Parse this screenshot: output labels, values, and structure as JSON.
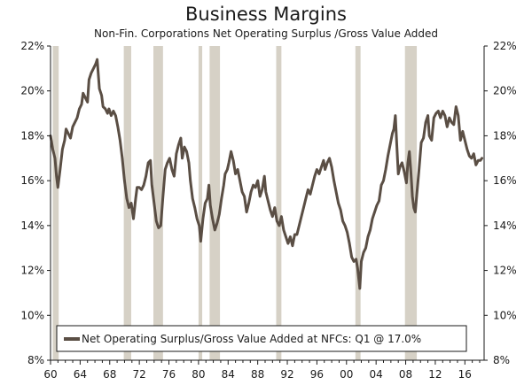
{
  "chart_data": {
    "type": "line",
    "title": "Business Margins",
    "subtitle": "Non-Fin. Corporations Net Operating Surplus /Gross Value Added",
    "xlabel": "",
    "ylabel": "",
    "xlim": [
      1960,
      2018.6
    ],
    "ylim": [
      8,
      22
    ],
    "x_ticks": [
      "60",
      "64",
      "68",
      "72",
      "76",
      "80",
      "84",
      "88",
      "92",
      "96",
      "00",
      "04",
      "08",
      "12",
      "16"
    ],
    "y_ticks": [
      "8%",
      "10%",
      "12%",
      "14%",
      "16%",
      "18%",
      "20%",
      "22%"
    ],
    "recessions": [
      [
        1960.3,
        1961.1
      ],
      [
        1969.9,
        1970.9
      ],
      [
        1973.9,
        1975.2
      ],
      [
        1980.0,
        1980.5
      ],
      [
        1981.5,
        1982.9
      ],
      [
        1990.5,
        1991.2
      ],
      [
        2001.2,
        2001.9
      ],
      [
        2007.9,
        2009.5
      ]
    ],
    "series": [
      {
        "name": "Net Operating Surplus/Gross Value Added at NFCs: Q1 @ 17.0%",
        "color": "#5a4e44",
        "points": [
          [
            1960.0,
            18.0
          ],
          [
            1960.3,
            17.4
          ],
          [
            1960.6,
            17.0
          ],
          [
            1960.8,
            16.2
          ],
          [
            1961.0,
            15.7
          ],
          [
            1961.3,
            16.5
          ],
          [
            1961.6,
            17.4
          ],
          [
            1961.9,
            17.8
          ],
          [
            1962.1,
            18.3
          ],
          [
            1962.4,
            18.1
          ],
          [
            1962.7,
            17.9
          ],
          [
            1963.0,
            18.4
          ],
          [
            1963.3,
            18.6
          ],
          [
            1963.6,
            18.8
          ],
          [
            1963.9,
            19.2
          ],
          [
            1964.2,
            19.4
          ],
          [
            1964.4,
            19.9
          ],
          [
            1964.7,
            19.7
          ],
          [
            1965.0,
            19.5
          ],
          [
            1965.2,
            20.5
          ],
          [
            1965.5,
            20.8
          ],
          [
            1965.8,
            21.0
          ],
          [
            1966.1,
            21.2
          ],
          [
            1966.3,
            21.4
          ],
          [
            1966.6,
            20.1
          ],
          [
            1966.9,
            19.8
          ],
          [
            1967.1,
            19.3
          ],
          [
            1967.4,
            19.2
          ],
          [
            1967.7,
            19.0
          ],
          [
            1967.9,
            19.2
          ],
          [
            1968.2,
            18.9
          ],
          [
            1968.5,
            19.1
          ],
          [
            1968.8,
            18.9
          ],
          [
            1969.1,
            18.4
          ],
          [
            1969.4,
            17.8
          ],
          [
            1969.7,
            17.0
          ],
          [
            1970.0,
            16.0
          ],
          [
            1970.3,
            15.2
          ],
          [
            1970.6,
            14.8
          ],
          [
            1970.9,
            15.0
          ],
          [
            1971.2,
            14.3
          ],
          [
            1971.5,
            15.2
          ],
          [
            1971.7,
            15.7
          ],
          [
            1972.0,
            15.7
          ],
          [
            1972.3,
            15.6
          ],
          [
            1972.6,
            15.8
          ],
          [
            1972.9,
            16.2
          ],
          [
            1973.2,
            16.8
          ],
          [
            1973.5,
            16.9
          ],
          [
            1973.7,
            15.8
          ],
          [
            1974.0,
            15.0
          ],
          [
            1974.3,
            14.2
          ],
          [
            1974.6,
            13.9
          ],
          [
            1974.9,
            14.0
          ],
          [
            1975.2,
            15.3
          ],
          [
            1975.5,
            16.5
          ],
          [
            1975.8,
            16.8
          ],
          [
            1976.1,
            17.0
          ],
          [
            1976.4,
            16.5
          ],
          [
            1976.7,
            16.2
          ],
          [
            1977.0,
            17.2
          ],
          [
            1977.3,
            17.6
          ],
          [
            1977.6,
            17.9
          ],
          [
            1977.8,
            17.0
          ],
          [
            1978.1,
            17.5
          ],
          [
            1978.4,
            17.3
          ],
          [
            1978.7,
            16.8
          ],
          [
            1978.9,
            16.0
          ],
          [
            1979.2,
            15.2
          ],
          [
            1979.5,
            14.8
          ],
          [
            1979.8,
            14.3
          ],
          [
            1980.1,
            14.0
          ],
          [
            1980.3,
            13.3
          ],
          [
            1980.6,
            14.3
          ],
          [
            1980.9,
            15.0
          ],
          [
            1981.2,
            15.2
          ],
          [
            1981.4,
            15.8
          ],
          [
            1981.6,
            14.9
          ],
          [
            1981.9,
            14.3
          ],
          [
            1982.2,
            13.8
          ],
          [
            1982.5,
            14.1
          ],
          [
            1982.8,
            14.5
          ],
          [
            1983.1,
            15.2
          ],
          [
            1983.4,
            15.8
          ],
          [
            1983.6,
            16.3
          ],
          [
            1983.9,
            16.5
          ],
          [
            1984.1,
            16.8
          ],
          [
            1984.4,
            17.3
          ],
          [
            1984.7,
            16.9
          ],
          [
            1985.0,
            16.3
          ],
          [
            1985.3,
            16.5
          ],
          [
            1985.6,
            16.0
          ],
          [
            1985.9,
            15.5
          ],
          [
            1986.2,
            15.3
          ],
          [
            1986.5,
            14.6
          ],
          [
            1986.8,
            15.0
          ],
          [
            1987.1,
            15.5
          ],
          [
            1987.4,
            15.8
          ],
          [
            1987.7,
            15.7
          ],
          [
            1988.0,
            16.0
          ],
          [
            1988.3,
            15.3
          ],
          [
            1988.6,
            15.6
          ],
          [
            1988.9,
            16.2
          ],
          [
            1989.1,
            15.5
          ],
          [
            1989.4,
            15.1
          ],
          [
            1989.7,
            14.7
          ],
          [
            1990.0,
            14.4
          ],
          [
            1990.3,
            14.8
          ],
          [
            1990.6,
            14.2
          ],
          [
            1990.9,
            14.0
          ],
          [
            1991.2,
            14.4
          ],
          [
            1991.5,
            13.8
          ],
          [
            1991.8,
            13.5
          ],
          [
            1992.1,
            13.2
          ],
          [
            1992.4,
            13.5
          ],
          [
            1992.7,
            13.1
          ],
          [
            1993.0,
            13.6
          ],
          [
            1993.3,
            13.6
          ],
          [
            1993.6,
            14.0
          ],
          [
            1993.9,
            14.4
          ],
          [
            1994.2,
            14.8
          ],
          [
            1994.5,
            15.2
          ],
          [
            1994.8,
            15.6
          ],
          [
            1995.1,
            15.4
          ],
          [
            1995.4,
            15.8
          ],
          [
            1995.7,
            16.2
          ],
          [
            1996.0,
            16.5
          ],
          [
            1996.3,
            16.3
          ],
          [
            1996.6,
            16.6
          ],
          [
            1996.9,
            16.9
          ],
          [
            1997.1,
            16.5
          ],
          [
            1997.4,
            16.8
          ],
          [
            1997.7,
            17.0
          ],
          [
            1998.0,
            16.6
          ],
          [
            1998.3,
            16.0
          ],
          [
            1998.6,
            15.5
          ],
          [
            1998.9,
            15.0
          ],
          [
            1999.2,
            14.7
          ],
          [
            1999.5,
            14.2
          ],
          [
            1999.8,
            14.0
          ],
          [
            2000.1,
            13.7
          ],
          [
            2000.4,
            13.2
          ],
          [
            2000.7,
            12.6
          ],
          [
            2001.0,
            12.4
          ],
          [
            2001.3,
            12.5
          ],
          [
            2001.5,
            12.1
          ],
          [
            2001.8,
            11.2
          ],
          [
            2002.0,
            12.4
          ],
          [
            2002.3,
            12.8
          ],
          [
            2002.6,
            13.0
          ],
          [
            2002.9,
            13.5
          ],
          [
            2003.2,
            13.8
          ],
          [
            2003.5,
            14.3
          ],
          [
            2003.8,
            14.6
          ],
          [
            2004.1,
            14.9
          ],
          [
            2004.4,
            15.1
          ],
          [
            2004.7,
            15.8
          ],
          [
            2005.0,
            16.0
          ],
          [
            2005.3,
            16.5
          ],
          [
            2005.6,
            17.1
          ],
          [
            2005.9,
            17.6
          ],
          [
            2006.2,
            18.1
          ],
          [
            2006.4,
            18.3
          ],
          [
            2006.6,
            18.9
          ],
          [
            2006.8,
            17.6
          ],
          [
            2007.0,
            16.3
          ],
          [
            2007.2,
            16.6
          ],
          [
            2007.5,
            16.8
          ],
          [
            2007.8,
            16.4
          ],
          [
            2008.1,
            15.9
          ],
          [
            2008.3,
            16.8
          ],
          [
            2008.5,
            17.3
          ],
          [
            2008.7,
            16.4
          ],
          [
            2008.9,
            15.3
          ],
          [
            2009.1,
            14.8
          ],
          [
            2009.3,
            14.6
          ],
          [
            2009.5,
            15.4
          ],
          [
            2009.8,
            16.5
          ],
          [
            2010.1,
            17.7
          ],
          [
            2010.4,
            17.9
          ],
          [
            2010.7,
            18.6
          ],
          [
            2011.0,
            18.9
          ],
          [
            2011.2,
            18.0
          ],
          [
            2011.5,
            17.8
          ],
          [
            2011.8,
            18.8
          ],
          [
            2012.1,
            19.0
          ],
          [
            2012.4,
            19.1
          ],
          [
            2012.7,
            18.8
          ],
          [
            2013.0,
            19.1
          ],
          [
            2013.3,
            18.9
          ],
          [
            2013.6,
            18.4
          ],
          [
            2013.9,
            18.8
          ],
          [
            2014.2,
            18.6
          ],
          [
            2014.5,
            18.5
          ],
          [
            2014.8,
            19.3
          ],
          [
            2015.1,
            18.9
          ],
          [
            2015.4,
            17.8
          ],
          [
            2015.7,
            18.2
          ],
          [
            2016.0,
            17.8
          ],
          [
            2016.3,
            17.4
          ],
          [
            2016.6,
            17.1
          ],
          [
            2016.9,
            17.0
          ],
          [
            2017.2,
            17.2
          ],
          [
            2017.5,
            16.7
          ],
          [
            2017.8,
            16.9
          ],
          [
            2018.1,
            16.9
          ],
          [
            2018.3,
            17.0
          ]
        ]
      }
    ],
    "legend": {
      "label": "Net Operating Surplus/Gross Value Added at NFCs: Q1 @ 17.0%",
      "position": "bottom-center"
    },
    "colors": {
      "line": "#5a4e44",
      "recession": "#d6d1c6",
      "axis": "#1a1a1a"
    }
  }
}
